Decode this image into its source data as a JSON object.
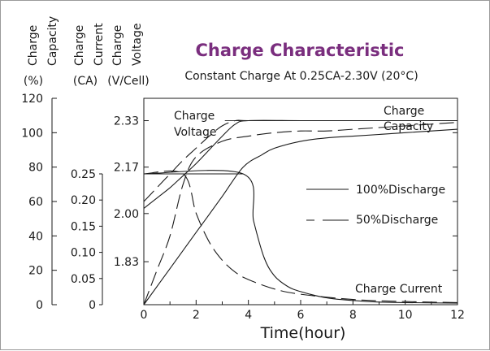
{
  "chart_data": {
    "type": "line",
    "title": "Charge Characteristic",
    "subtitle": "Constant Charge At 0.25CA-2.30V (20°C)",
    "xlabel": "Time(hour)",
    "xlim": [
      0,
      12
    ],
    "x_ticks": [
      "0",
      "2",
      "4",
      "6",
      "8",
      "10",
      "12"
    ],
    "axes": {
      "capacity": {
        "title_lines": [
          "Charge",
          "Capacity"
        ],
        "unit": "(%)",
        "range": [
          0,
          120
        ],
        "ticks": [
          "0",
          "20",
          "40",
          "60",
          "80",
          "100",
          "120"
        ]
      },
      "current": {
        "title_lines": [
          "Charge",
          "Current"
        ],
        "unit": "(CA)",
        "range": [
          0,
          0.25
        ],
        "ticks": [
          "0",
          "0.05",
          "0.10",
          "0.15",
          "0.20",
          "0.25"
        ]
      },
      "voltage": {
        "title_lines": [
          "Charge",
          "Voltage"
        ],
        "unit": "(V/Cell)",
        "ticks": [
          {
            "label": "1.83",
            "capacity_equiv": 25
          },
          {
            "label": "2.00",
            "capacity_equiv": 53
          },
          {
            "label": "2.17",
            "capacity_equiv": 80
          },
          {
            "label": "2.33",
            "capacity_equiv": 107
          }
        ]
      }
    },
    "legend": [
      {
        "label": "100%Discharge",
        "style": "solid"
      },
      {
        "label": "50%Discharge",
        "style": "dashed"
      }
    ],
    "annotations": [
      {
        "lines": [
          "Charge",
          "Voltage"
        ]
      },
      {
        "lines": [
          "Charge",
          "Capacity"
        ]
      },
      {
        "lines": [
          "Charge Current"
        ]
      }
    ],
    "series": [
      {
        "curve": "voltage",
        "style": "solid",
        "x": [
          0,
          0.5,
          1,
          1.5,
          2,
          2.5,
          3,
          3.5,
          4,
          6,
          8,
          10,
          12
        ],
        "y": [
          56,
          62,
          68,
          75,
          82,
          90,
          98,
          105,
          107,
          107,
          107,
          107,
          107
        ]
      },
      {
        "curve": "voltage",
        "style": "dashed",
        "x": [
          0,
          0.5,
          1,
          1.5,
          2,
          2.5,
          3,
          3.5,
          4,
          6,
          8,
          10,
          12
        ],
        "y": [
          60,
          68,
          76,
          84,
          91,
          98,
          104,
          107,
          107,
          107,
          107,
          107,
          107
        ]
      },
      {
        "curve": "capacity",
        "style": "solid",
        "x": [
          0,
          1,
          2,
          3,
          3.8,
          4.5,
          5,
          6,
          7,
          8,
          9,
          10,
          11,
          12
        ],
        "y": [
          0,
          21,
          42,
          63,
          80,
          87,
          91,
          95,
          97,
          98,
          99,
          100,
          101,
          102
        ]
      },
      {
        "curve": "capacity",
        "style": "dashed",
        "x": [
          0,
          0.5,
          1,
          1.5,
          2,
          3,
          4,
          5,
          6,
          7,
          8,
          9,
          10,
          11,
          12
        ],
        "y": [
          0,
          20,
          40,
          70,
          86,
          95,
          98,
          100,
          101,
          101,
          102,
          103,
          104,
          105,
          106
        ]
      },
      {
        "curve": "current",
        "style": "solid",
        "x": [
          0,
          3.8,
          4.2,
          4.6,
          5,
          5.5,
          6,
          7,
          8,
          9,
          10,
          12
        ],
        "y": [
          0.25,
          0.25,
          0.16,
          0.09,
          0.055,
          0.035,
          0.025,
          0.013,
          0.008,
          0.005,
          0.004,
          0.003
        ]
      },
      {
        "curve": "current",
        "style": "dashed",
        "x": [
          0,
          1.5,
          2,
          2.5,
          3,
          3.5,
          4,
          5,
          6,
          8,
          10,
          12
        ],
        "y": [
          0.25,
          0.25,
          0.175,
          0.12,
          0.085,
          0.062,
          0.048,
          0.03,
          0.02,
          0.01,
          0.006,
          0.004
        ]
      }
    ]
  }
}
